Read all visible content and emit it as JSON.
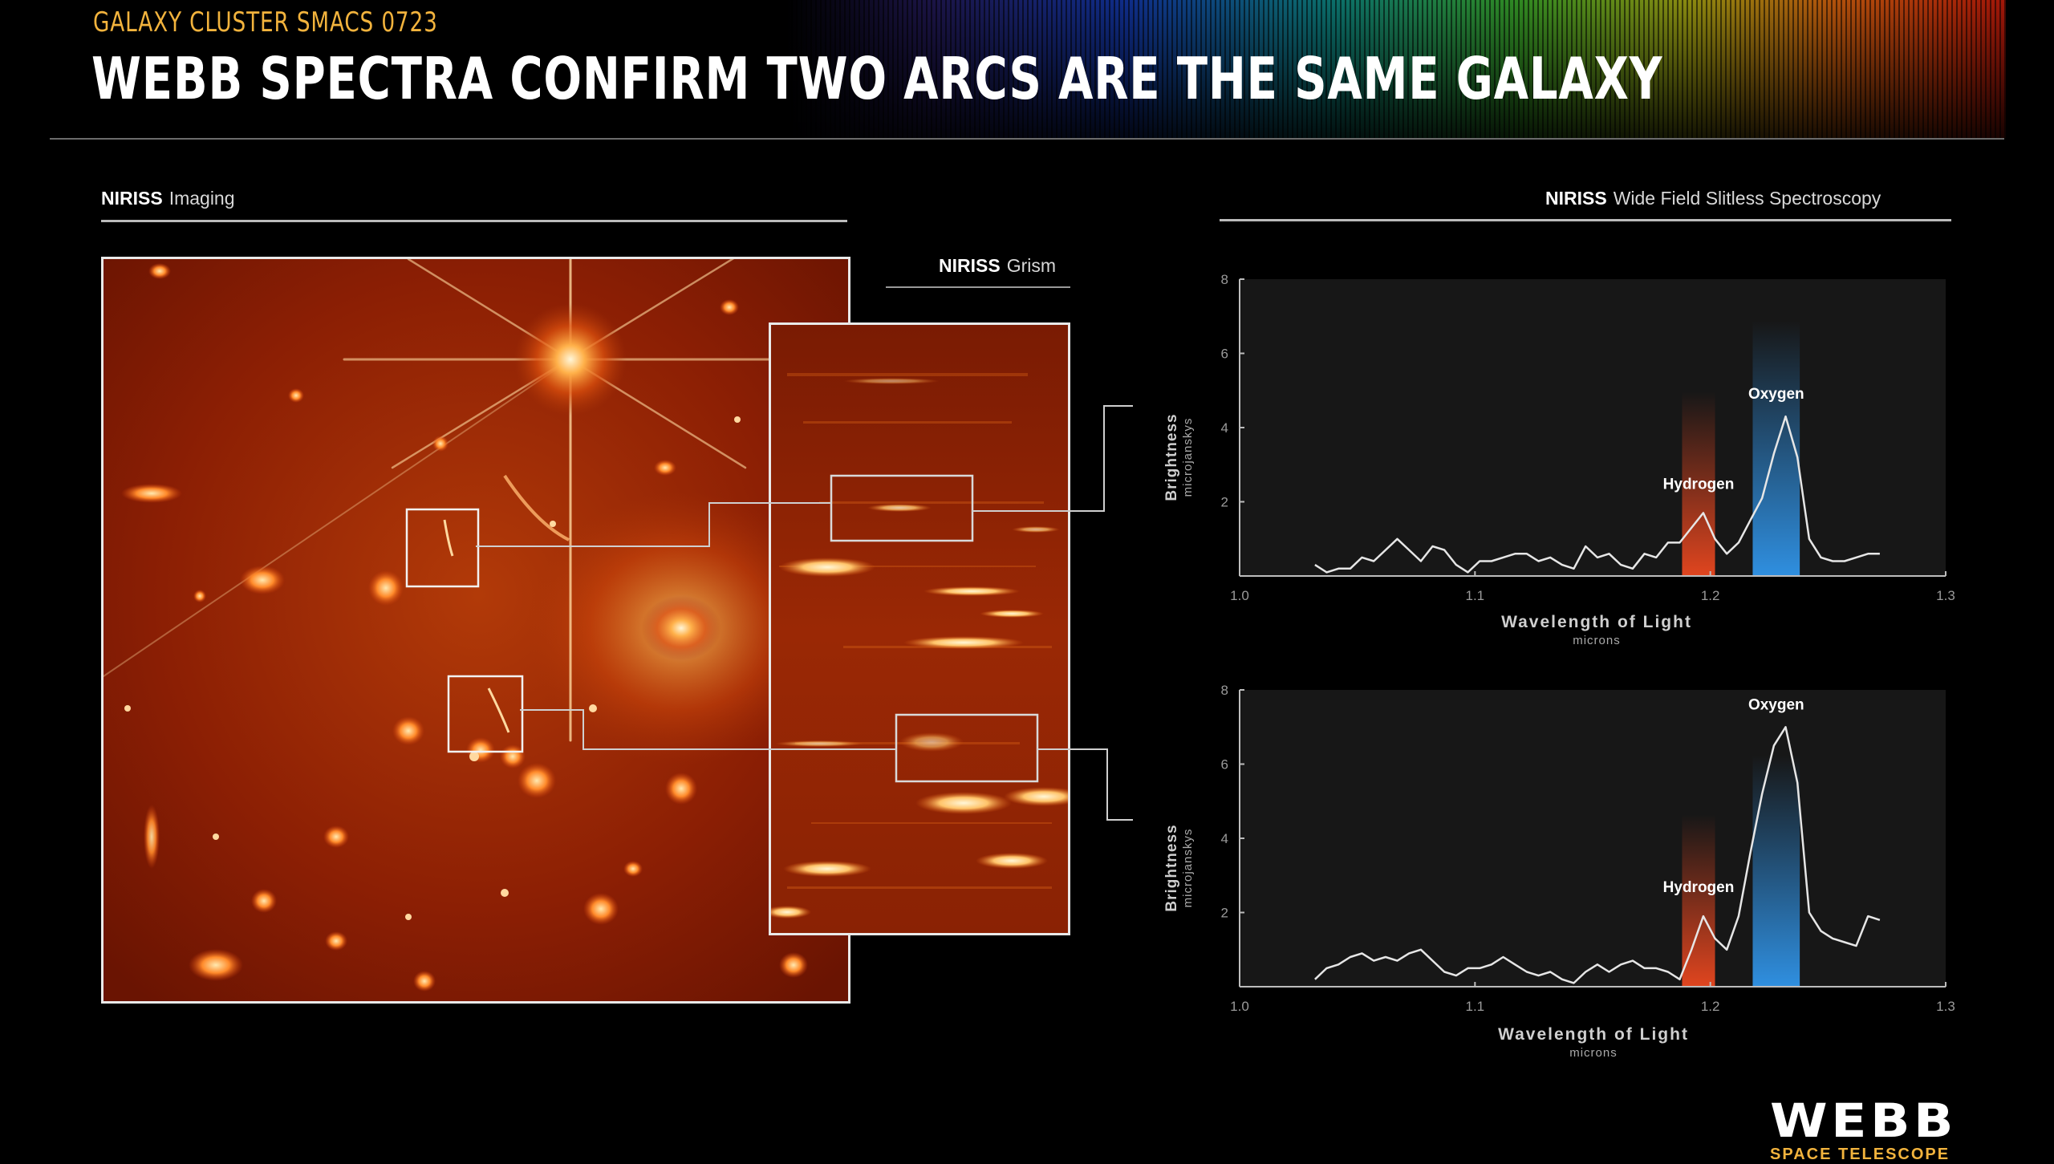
{
  "header": {
    "eyebrow": "GALAXY CLUSTER SMACS 0723",
    "title": "WEBB SPECTRA CONFIRM TWO ARCS ARE THE SAME GALAXY"
  },
  "sections": {
    "imaging": {
      "instrument": "NIRISS",
      "mode": "Imaging"
    },
    "grism": {
      "instrument": "NIRISS",
      "mode": "Grism"
    },
    "spectroscopy": {
      "instrument": "NIRISS",
      "mode": "Wide Field Slitless Spectroscopy"
    }
  },
  "colors": {
    "accent": "#f2b33d",
    "hydrogen": "#e0451f",
    "oxygen": "#2f8fe0",
    "line": "#e6e6e6",
    "plot_bg": "#171717"
  },
  "chart_data": [
    {
      "type": "line",
      "ylabel": "Brightness",
      "yunit": "microjanskys",
      "xlabel": "Wavelength of Light",
      "xunit": "microns",
      "xlim": [
        1.0,
        1.3
      ],
      "ylim": [
        0,
        8
      ],
      "xticks": [
        "1.0",
        "1.1",
        "1.2",
        "1.3"
      ],
      "yticks": [
        "2",
        "4",
        "6",
        "8"
      ],
      "bands": [
        {
          "label": "Hydrogen",
          "x_from": 1.188,
          "x_to": 1.202,
          "color": "hydrogen"
        },
        {
          "label": "Oxygen",
          "x_from": 1.218,
          "x_to": 1.238,
          "color": "oxygen"
        }
      ],
      "x": [
        1.032,
        1.037,
        1.042,
        1.047,
        1.052,
        1.057,
        1.062,
        1.067,
        1.072,
        1.077,
        1.082,
        1.087,
        1.092,
        1.097,
        1.102,
        1.107,
        1.112,
        1.117,
        1.122,
        1.127,
        1.132,
        1.137,
        1.142,
        1.147,
        1.152,
        1.157,
        1.162,
        1.167,
        1.172,
        1.177,
        1.182,
        1.187,
        1.192,
        1.197,
        1.202,
        1.207,
        1.212,
        1.217,
        1.222,
        1.227,
        1.232,
        1.237,
        1.242,
        1.247,
        1.252,
        1.257,
        1.262,
        1.267,
        1.272
      ],
      "y": [
        0.3,
        0.1,
        0.2,
        0.2,
        0.5,
        0.4,
        0.7,
        1.0,
        0.7,
        0.4,
        0.8,
        0.7,
        0.3,
        0.1,
        0.4,
        0.4,
        0.5,
        0.6,
        0.6,
        0.4,
        0.5,
        0.3,
        0.2,
        0.8,
        0.5,
        0.6,
        0.3,
        0.2,
        0.6,
        0.5,
        0.9,
        0.9,
        1.3,
        1.7,
        1.0,
        0.6,
        0.9,
        1.5,
        2.1,
        3.3,
        4.3,
        3.2,
        1.0,
        0.5,
        0.4,
        0.4,
        0.5,
        0.6,
        0.6
      ]
    },
    {
      "type": "line",
      "ylabel": "Brightness",
      "yunit": "microjanskys",
      "xlabel": "Wavelength of Light",
      "xunit": "microns",
      "xlim": [
        1.0,
        1.3
      ],
      "ylim": [
        0,
        8
      ],
      "xticks": [
        "1.0",
        "1.1",
        "1.2",
        "1.3"
      ],
      "yticks": [
        "2",
        "4",
        "6",
        "8"
      ],
      "bands": [
        {
          "label": "Hydrogen",
          "x_from": 1.188,
          "x_to": 1.202,
          "color": "hydrogen"
        },
        {
          "label": "Oxygen",
          "x_from": 1.218,
          "x_to": 1.238,
          "color": "oxygen"
        }
      ],
      "x": [
        1.032,
        1.037,
        1.042,
        1.047,
        1.052,
        1.057,
        1.062,
        1.067,
        1.072,
        1.077,
        1.082,
        1.087,
        1.092,
        1.097,
        1.102,
        1.107,
        1.112,
        1.117,
        1.122,
        1.127,
        1.132,
        1.137,
        1.142,
        1.147,
        1.152,
        1.157,
        1.162,
        1.167,
        1.172,
        1.177,
        1.182,
        1.187,
        1.192,
        1.197,
        1.202,
        1.207,
        1.212,
        1.217,
        1.222,
        1.227,
        1.232,
        1.237,
        1.242,
        1.247,
        1.252,
        1.257,
        1.262,
        1.267,
        1.272
      ],
      "y": [
        0.2,
        0.5,
        0.6,
        0.8,
        0.9,
        0.7,
        0.8,
        0.7,
        0.9,
        1.0,
        0.7,
        0.4,
        0.3,
        0.5,
        0.5,
        0.6,
        0.8,
        0.6,
        0.4,
        0.3,
        0.4,
        0.2,
        0.1,
        0.4,
        0.6,
        0.4,
        0.6,
        0.7,
        0.5,
        0.5,
        0.4,
        0.2,
        1.0,
        1.9,
        1.3,
        1.0,
        1.9,
        3.6,
        5.2,
        6.5,
        7.0,
        5.5,
        2.0,
        1.5,
        1.3,
        1.2,
        1.1,
        1.9,
        1.8
      ]
    }
  ]
}
